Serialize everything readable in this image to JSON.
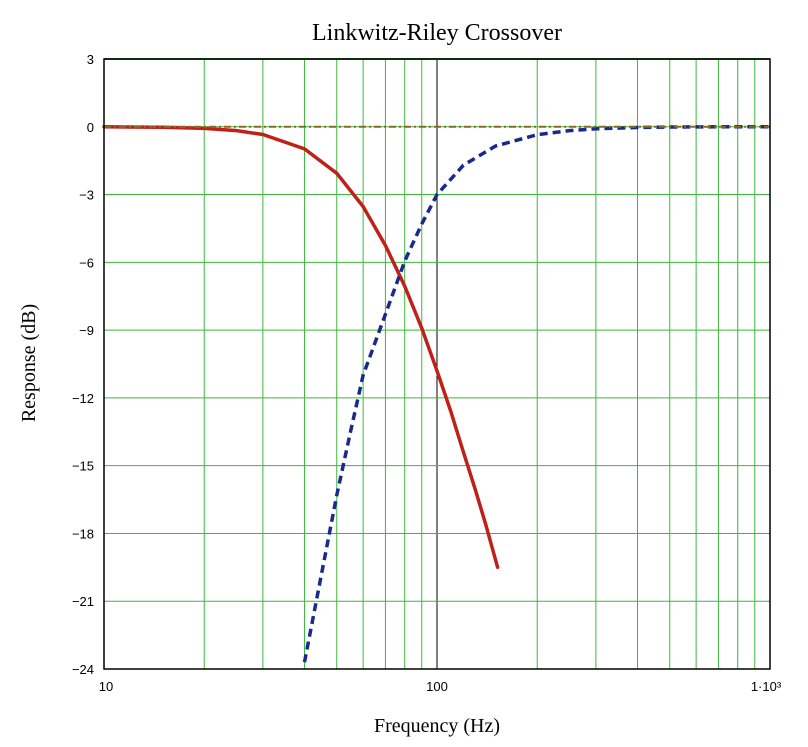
{
  "chart_data": {
    "type": "line",
    "title": "Linkwitz-Riley Crossover",
    "xlabel": "Frequency (Hz)",
    "ylabel": "Response (dB)",
    "xscale": "log",
    "xlim": [
      10,
      1000
    ],
    "ylim": [
      -24,
      3
    ],
    "x_tick_labels": [
      "10",
      "100",
      "1·10³"
    ],
    "y_ticks": [
      3,
      0,
      -3,
      -6,
      -9,
      -12,
      -15,
      -18,
      -21,
      -24
    ],
    "grid": true,
    "colors": {
      "grid": "#3cb83c",
      "lowpass": "#c0201a",
      "highpass": "#1a2a8c",
      "sum_dash": "#8a6a20",
      "frame": "#000000"
    },
    "series": [
      {
        "name": "",
        "style": "solid",
        "color": "#c0201a",
        "x": [
          10,
          15,
          20,
          25,
          30,
          40,
          50,
          60,
          70,
          80,
          90,
          100,
          110,
          120,
          130,
          140,
          152
        ],
        "y": [
          0.0,
          -0.02,
          -0.07,
          -0.17,
          -0.34,
          -0.98,
          -2.06,
          -3.53,
          -5.25,
          -7.05,
          -8.92,
          -10.8,
          -12.6,
          -14.4,
          -16.0,
          -17.6,
          -19.5
        ]
      },
      {
        "name": "",
        "style": "dashed",
        "color": "#1a2a8c",
        "x": [
          40,
          45,
          50,
          55,
          60,
          70,
          80,
          90,
          100,
          120,
          150,
          200,
          250,
          300,
          400,
          500,
          700,
          1000
        ],
        "y": [
          -23.7,
          -19.8,
          -16.3,
          -13.5,
          -11.0,
          -8.3,
          -5.95,
          -4.3,
          -3.0,
          -1.7,
          -0.85,
          -0.35,
          -0.17,
          -0.09,
          -0.03,
          -0.01,
          0.0,
          0.0
        ]
      },
      {
        "name": "",
        "style": "dash-dot",
        "color": "#8a6a20",
        "x": [
          10,
          1000
        ],
        "y": [
          0,
          0
        ]
      }
    ]
  }
}
